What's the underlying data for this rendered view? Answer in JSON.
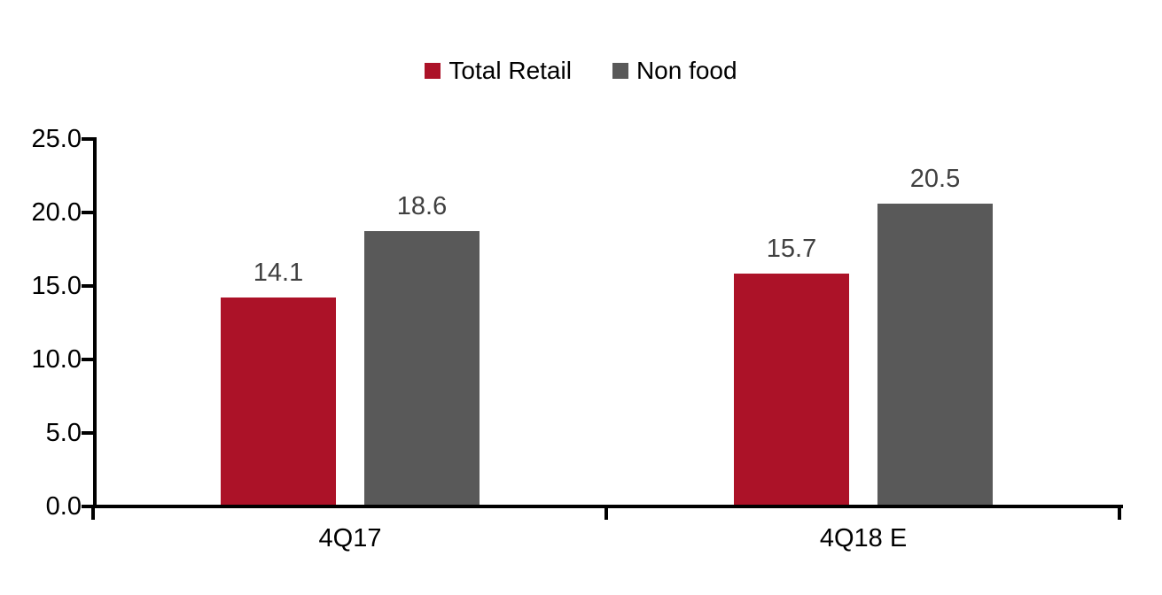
{
  "chart_data": {
    "type": "bar",
    "title": "",
    "categories": [
      "4Q17",
      "4Q18 E"
    ],
    "series": [
      {
        "name": "Total Retail",
        "color": "#AC1228",
        "values": [
          14.1,
          15.7
        ],
        "labels": [
          "14.1",
          "15.7"
        ]
      },
      {
        "name": "Non food",
        "color": "#595959",
        "values": [
          18.6,
          20.5
        ],
        "labels": [
          "18.6",
          "20.5"
        ]
      }
    ],
    "ylim": [
      0,
      25
    ],
    "ytick_values": [
      0,
      5,
      10,
      15,
      20,
      25
    ],
    "ytick_labels": [
      "0.0",
      "5.0",
      "10.0",
      "15.0",
      "20.0",
      "25.0"
    ],
    "grid": false,
    "legend_position": "top-center",
    "axis_color": "#000000",
    "value_label_color": "#404040"
  }
}
